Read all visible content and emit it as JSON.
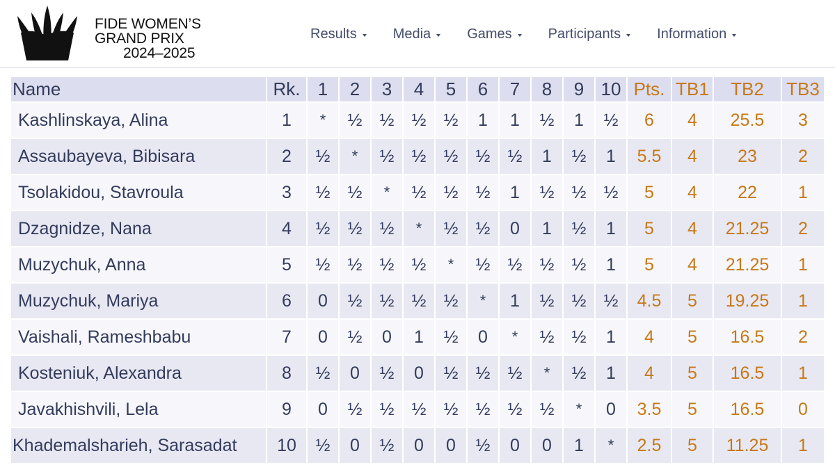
{
  "logo": {
    "line1": "FIDE WOMEN’S",
    "line2": "GRAND PRIX",
    "line3": "2024–2025"
  },
  "nav": {
    "items": [
      {
        "label": "Results",
        "name": "nav-results"
      },
      {
        "label": "Media",
        "name": "nav-media"
      },
      {
        "label": "Games",
        "name": "nav-games"
      },
      {
        "label": "Participants",
        "name": "nav-participants"
      },
      {
        "label": "Information",
        "name": "nav-information"
      }
    ]
  },
  "table": {
    "headers": [
      "Name",
      "Rk.",
      "1",
      "2",
      "3",
      "4",
      "5",
      "6",
      "7",
      "8",
      "9",
      "10",
      "Pts.",
      "TB1",
      "TB2",
      "TB3"
    ],
    "rows": [
      {
        "name": "Kashlinskaya, Alina",
        "rank": "1",
        "results": [
          "*",
          "½",
          "½",
          "½",
          "½",
          "1",
          "1",
          "½",
          "1",
          "½"
        ],
        "pts": "6",
        "tb1": "4",
        "tb2": "25.5",
        "tb3": "3"
      },
      {
        "name": "Assaubayeva, Bibisara",
        "rank": "2",
        "results": [
          "½",
          "*",
          "½",
          "½",
          "½",
          "½",
          "½",
          "1",
          "½",
          "1"
        ],
        "pts": "5.5",
        "tb1": "4",
        "tb2": "23",
        "tb3": "2"
      },
      {
        "name": "Tsolakidou, Stavroula",
        "rank": "3",
        "results": [
          "½",
          "½",
          "*",
          "½",
          "½",
          "½",
          "1",
          "½",
          "½",
          "½"
        ],
        "pts": "5",
        "tb1": "4",
        "tb2": "22",
        "tb3": "1"
      },
      {
        "name": "Dzagnidze, Nana",
        "rank": "4",
        "results": [
          "½",
          "½",
          "½",
          "*",
          "½",
          "½",
          "0",
          "1",
          "½",
          "1"
        ],
        "pts": "5",
        "tb1": "4",
        "tb2": "21.25",
        "tb3": "2"
      },
      {
        "name": "Muzychuk, Anna",
        "rank": "5",
        "results": [
          "½",
          "½",
          "½",
          "½",
          "*",
          "½",
          "½",
          "½",
          "½",
          "1"
        ],
        "pts": "5",
        "tb1": "4",
        "tb2": "21.25",
        "tb3": "1"
      },
      {
        "name": "Muzychuk, Mariya",
        "rank": "6",
        "results": [
          "0",
          "½",
          "½",
          "½",
          "½",
          "*",
          "1",
          "½",
          "½",
          "½"
        ],
        "pts": "4.5",
        "tb1": "5",
        "tb2": "19.25",
        "tb3": "1"
      },
      {
        "name": "Vaishali, Rameshbabu",
        "rank": "7",
        "results": [
          "0",
          "½",
          "0",
          "1",
          "½",
          "0",
          "*",
          "½",
          "½",
          "1"
        ],
        "pts": "4",
        "tb1": "5",
        "tb2": "16.5",
        "tb3": "2"
      },
      {
        "name": "Kosteniuk, Alexandra",
        "rank": "8",
        "results": [
          "½",
          "0",
          "½",
          "0",
          "½",
          "½",
          "½",
          "*",
          "½",
          "1"
        ],
        "pts": "4",
        "tb1": "5",
        "tb2": "16.5",
        "tb3": "1"
      },
      {
        "name": "Javakhishvili, Lela",
        "rank": "9",
        "results": [
          "0",
          "½",
          "½",
          "½",
          "½",
          "½",
          "½",
          "½",
          "*",
          "0"
        ],
        "pts": "3.5",
        "tb1": "5",
        "tb2": "16.5",
        "tb3": "0"
      },
      {
        "name": "Khademalsharieh, Sarasadat",
        "rank": "10",
        "results": [
          "½",
          "0",
          "½",
          "0",
          "0",
          "½",
          "0",
          "0",
          "1",
          "*"
        ],
        "pts": "2.5",
        "tb1": "5",
        "tb2": "11.25",
        "tb3": "1"
      }
    ]
  }
}
